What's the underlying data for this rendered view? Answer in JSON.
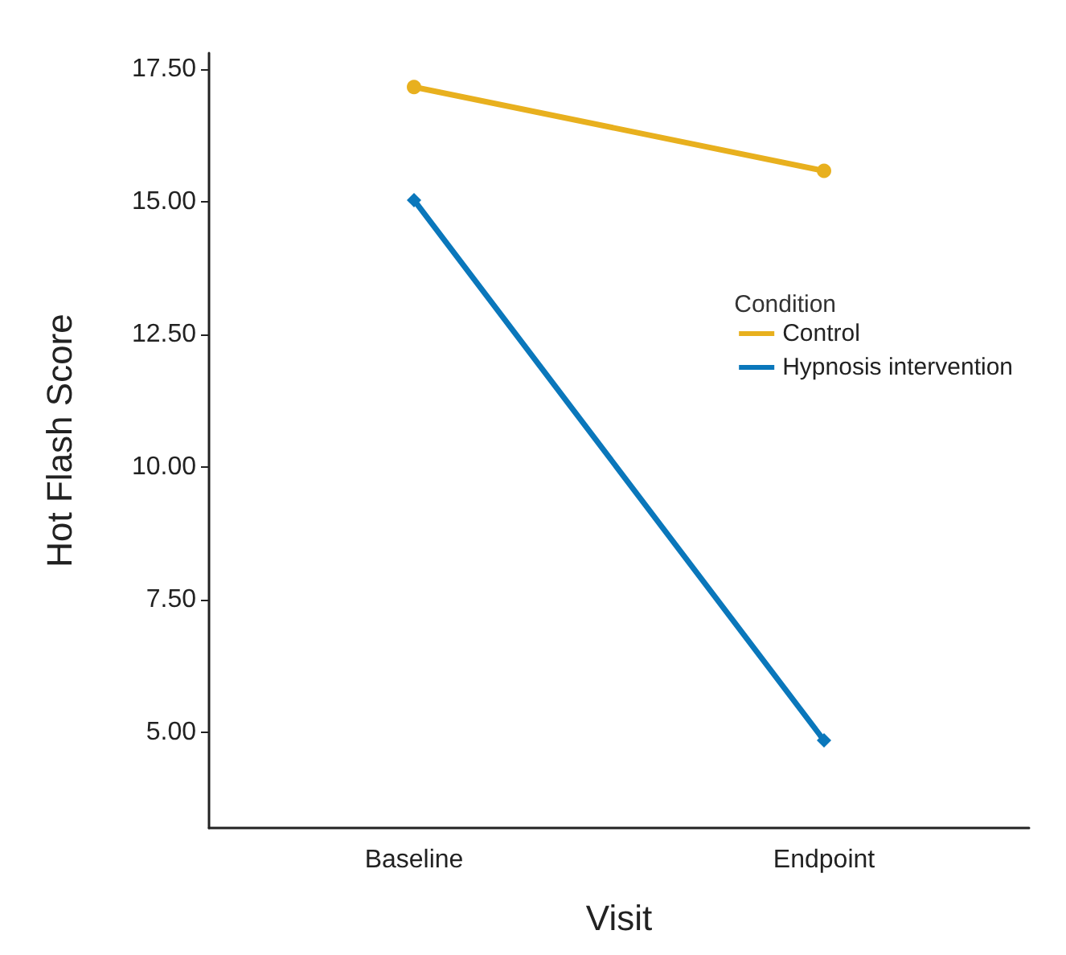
{
  "chart_data": {
    "type": "line",
    "xlabel": "Visit",
    "ylabel": "Hot Flash Score",
    "legend_title": "Condition",
    "categories": [
      "Baseline",
      "Endpoint"
    ],
    "series": [
      {
        "name": "Control",
        "color": "#e8b01e",
        "values": [
          17.16,
          15.58
        ],
        "marker": "circle"
      },
      {
        "name": "Hypnosis intervention",
        "color": "#0a77bb",
        "values": [
          15.03,
          4.85
        ],
        "marker": "diamond"
      }
    ],
    "ylim": [
      3.2,
      17.8
    ],
    "yticks": [
      {
        "value": 5,
        "label": "5.00"
      },
      {
        "value": 7.5,
        "label": "7.50"
      },
      {
        "value": 10,
        "label": "10.00"
      },
      {
        "value": 12.5,
        "label": "12.50"
      },
      {
        "value": 15,
        "label": "15.00"
      },
      {
        "value": 17.5,
        "label": "17.50"
      }
    ],
    "grid": false,
    "legend": "right",
    "line_style": "solid"
  }
}
